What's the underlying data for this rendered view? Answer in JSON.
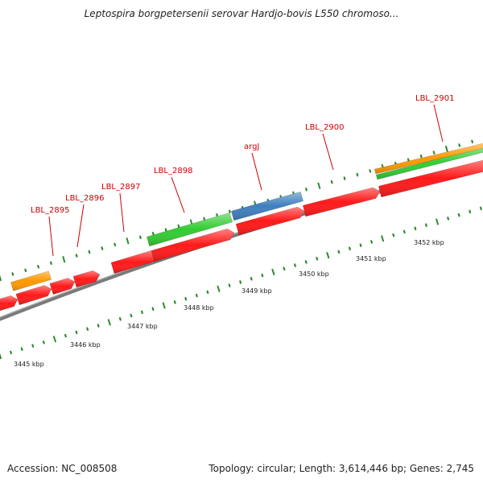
{
  "title": "Leptospira borgpetersenii serovar Hardjo-bovis L550 chromoso...",
  "footer": {
    "accession": "Accession: NC_008508",
    "info": "Topology: circular; Length: 3,614,446 bp; Genes: 2,745"
  },
  "colors": {
    "backbone": "#7a7a7a",
    "tick": "#2e8b2e",
    "label": "#cc0000",
    "gene_red": "#ff1a1a",
    "gene_green": "#33cc33",
    "gene_blue": "#3f7fbf",
    "gene_orange": "#ff9900",
    "scale_text": "#222222"
  },
  "gene_labels": [
    "LBL_2895",
    "LBL_2896",
    "LBL_2897",
    "LBL_2898",
    "argJ",
    "LBL_2900",
    "LBL_2901"
  ],
  "scale_labels": [
    "3445 kbp",
    "3446 kbp",
    "3447 kbp",
    "3448 kbp",
    "3449 kbp",
    "3450 kbp",
    "3451 kbp",
    "3452 kbp"
  ]
}
